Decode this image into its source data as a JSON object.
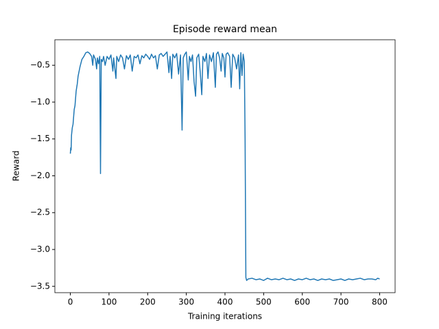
{
  "chart_data": {
    "type": "line",
    "title": "Episode reward mean",
    "xlabel": "Training iterations",
    "ylabel": "Reward",
    "color": "#1f77b4",
    "xlim": [
      -40,
      840
    ],
    "ylim": [
      -3.586,
      -0.154
    ],
    "xticks": [
      0,
      100,
      200,
      300,
      400,
      500,
      600,
      700,
      800
    ],
    "yticks": [
      {
        "value": -3.5,
        "label": "−3.5"
      },
      {
        "value": -3.0,
        "label": "−3.0"
      },
      {
        "value": -2.5,
        "label": "−2.5"
      },
      {
        "value": -2.0,
        "label": "−2.0"
      },
      {
        "value": -1.5,
        "label": "−1.5"
      },
      {
        "value": -1.0,
        "label": "−1.0"
      },
      {
        "value": -0.5,
        "label": "−0.5"
      }
    ],
    "x": [
      0,
      1,
      2,
      3,
      5,
      7,
      10,
      12,
      15,
      18,
      20,
      25,
      30,
      35,
      40,
      45,
      50,
      55,
      58,
      60,
      65,
      68,
      70,
      73,
      76,
      78,
      80,
      83,
      86,
      90,
      95,
      100,
      105,
      110,
      112,
      118,
      120,
      125,
      130,
      135,
      140,
      145,
      150,
      155,
      160,
      165,
      170,
      175,
      180,
      185,
      190,
      195,
      200,
      205,
      210,
      215,
      220,
      225,
      230,
      235,
      240,
      245,
      250,
      255,
      258,
      262,
      265,
      270,
      275,
      280,
      285,
      289,
      292,
      296,
      300,
      305,
      308,
      312,
      316,
      320,
      324,
      327,
      332,
      336,
      340,
      343,
      348,
      352,
      356,
      360,
      365,
      370,
      375,
      378,
      382,
      386,
      390,
      393,
      397,
      400,
      403,
      407,
      412,
      416,
      420,
      425,
      430,
      435,
      438,
      441,
      444,
      447,
      450,
      452,
      454,
      456,
      460,
      470,
      480,
      490,
      500,
      510,
      520,
      530,
      540,
      550,
      560,
      570,
      580,
      590,
      600,
      610,
      620,
      630,
      640,
      650,
      660,
      670,
      680,
      690,
      700,
      710,
      720,
      730,
      740,
      750,
      760,
      770,
      780,
      790,
      795,
      800
    ],
    "values": [
      -1.7,
      -1.62,
      -1.65,
      -1.45,
      -1.35,
      -1.3,
      -1.1,
      -1.05,
      -0.85,
      -0.75,
      -0.65,
      -0.52,
      -0.42,
      -0.38,
      -0.33,
      -0.32,
      -0.34,
      -0.38,
      -0.5,
      -0.36,
      -0.42,
      -0.55,
      -0.4,
      -0.48,
      -0.38,
      -1.97,
      -0.42,
      -0.45,
      -0.38,
      -0.5,
      -0.38,
      -0.42,
      -0.36,
      -0.58,
      -0.4,
      -0.68,
      -0.38,
      -0.45,
      -0.36,
      -0.4,
      -0.55,
      -0.37,
      -0.42,
      -0.36,
      -0.58,
      -0.38,
      -0.4,
      -0.36,
      -0.48,
      -0.37,
      -0.4,
      -0.35,
      -0.38,
      -0.42,
      -0.35,
      -0.4,
      -0.37,
      -0.55,
      -0.36,
      -0.34,
      -0.38,
      -0.35,
      -0.32,
      -0.6,
      -0.38,
      -0.68,
      -0.35,
      -0.4,
      -0.34,
      -0.62,
      -0.36,
      -1.38,
      -0.4,
      -0.35,
      -0.32,
      -0.7,
      -0.38,
      -0.45,
      -0.36,
      -0.72,
      -0.92,
      -0.4,
      -0.35,
      -0.6,
      -0.9,
      -0.38,
      -0.45,
      -0.34,
      -0.68,
      -0.36,
      -0.45,
      -0.33,
      -0.8,
      -0.35,
      -0.32,
      -0.4,
      -0.58,
      -0.34,
      -0.4,
      -0.66,
      -0.35,
      -0.33,
      -0.38,
      -0.8,
      -0.35,
      -0.4,
      -0.55,
      -0.36,
      -0.82,
      -0.33,
      -0.64,
      -0.35,
      -0.45,
      -1.5,
      -3.38,
      -3.42,
      -3.4,
      -3.39,
      -3.41,
      -3.4,
      -3.42,
      -3.39,
      -3.41,
      -3.4,
      -3.41,
      -3.39,
      -3.41,
      -3.4,
      -3.42,
      -3.4,
      -3.41,
      -3.39,
      -3.41,
      -3.4,
      -3.42,
      -3.4,
      -3.41,
      -3.4,
      -3.42,
      -3.41,
      -3.4,
      -3.42,
      -3.4,
      -3.41,
      -3.4,
      -3.39,
      -3.41,
      -3.4,
      -3.4,
      -3.41,
      -3.39,
      -3.4
    ]
  }
}
